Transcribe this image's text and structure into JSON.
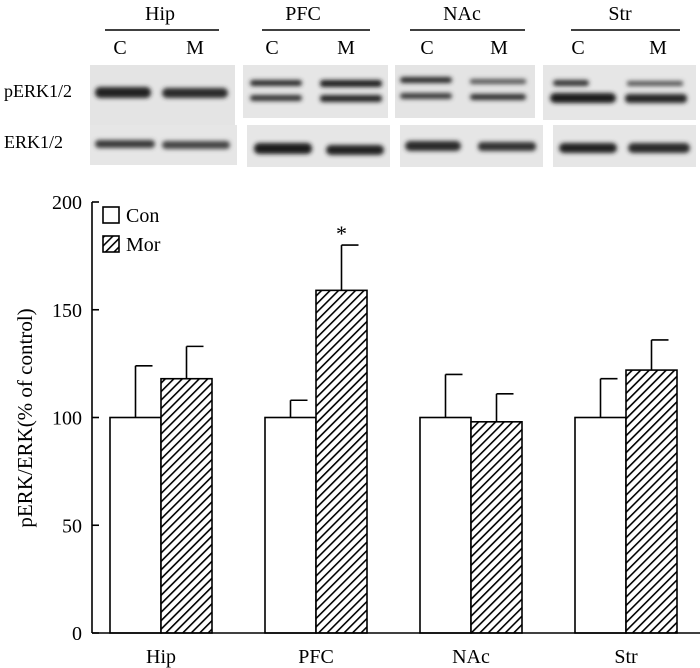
{
  "blot": {
    "regions": [
      {
        "label": "Hip",
        "lanes": [
          "C",
          "M"
        ]
      },
      {
        "label": "PFC",
        "lanes": [
          "C",
          "M"
        ]
      },
      {
        "label": "NAc",
        "lanes": [
          "C",
          "M"
        ]
      },
      {
        "label": "Str",
        "lanes": [
          "C",
          "M"
        ]
      }
    ],
    "row_labels": [
      "pERK1/2",
      "ERK1/2"
    ]
  },
  "chart_data": {
    "type": "bar",
    "categories": [
      "Hip",
      "PFC",
      "NAc",
      "Str"
    ],
    "series": [
      {
        "name": "Con",
        "values": [
          100,
          100,
          100,
          100
        ],
        "errors": [
          24,
          8,
          20,
          18
        ],
        "fill": "white"
      },
      {
        "name": "Mor",
        "values": [
          118,
          159,
          98,
          122
        ],
        "errors": [
          15,
          21,
          13,
          14
        ],
        "fill": "hatched"
      }
    ],
    "annotations": [
      {
        "category": "PFC",
        "series": "Mor",
        "text": "*"
      }
    ],
    "ylabel": "pERK/ERK(% of control)",
    "xlabel": "",
    "ylim": [
      0,
      200
    ],
    "yticks": [
      0,
      50,
      100,
      150,
      200
    ],
    "legend": "top-left",
    "grid": false
  }
}
